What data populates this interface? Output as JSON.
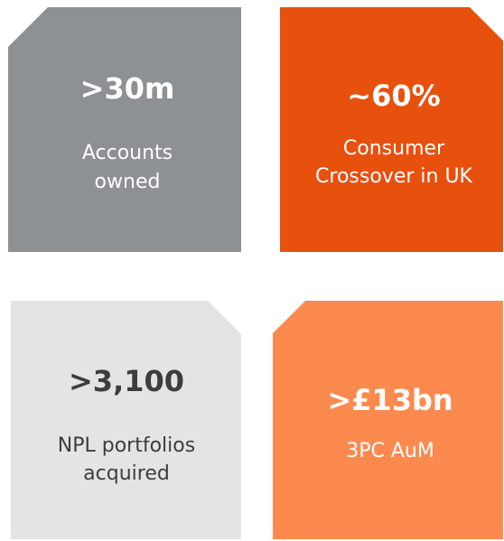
{
  "tiles": [
    {
      "value": ">30m",
      "label": [
        "Accounts",
        "owned"
      ]
    },
    {
      "value": "~60%",
      "label": [
        "Consumer",
        "Crossover in UK"
      ]
    },
    {
      "value": ">3,100",
      "label": [
        "NPL portfolios",
        "acquired"
      ]
    },
    {
      "value": ">£13bn",
      "label": [
        "3PC AuM"
      ]
    }
  ]
}
